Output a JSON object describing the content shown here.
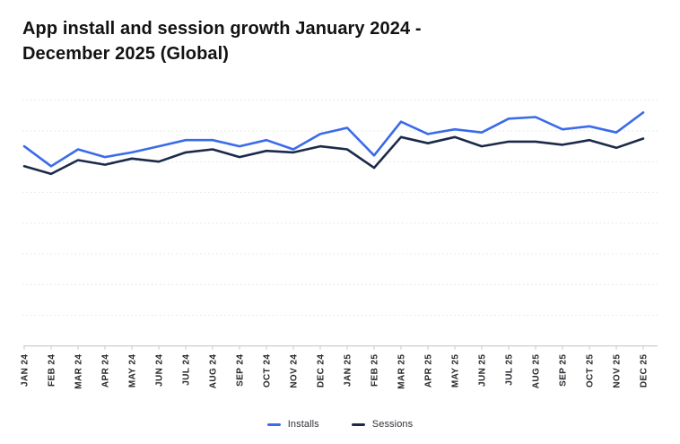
{
  "page": {
    "background": "#ffffff"
  },
  "header": {
    "title": "App install and session growth January 2024 - December 2025 (Global)",
    "title_lines": [
      "App install and session growth January 2024 -",
      "December 2025 (Global)"
    ]
  },
  "legend": {
    "items": [
      "Installs",
      "Sessions"
    ]
  },
  "colors": {
    "installs_line": "#3A6BE8",
    "sessions_line": "#1C2A4A",
    "gridline": "#e4e4e4",
    "axis": "#c8c8c8",
    "axis_label": "#27292d",
    "title_text": "#121212"
  },
  "chart_data": {
    "type": "line",
    "title": "App install and session growth January 2024 - December 2025 (Global)",
    "x_categories": [
      "JAN 24",
      "FEB 24",
      "MAR 24",
      "APR 24",
      "MAY 24",
      "JUN 24",
      "JUL 24",
      "AUG 24",
      "SEP 24",
      "OCT 24",
      "NOV 24",
      "DEC 24",
      "JAN 25",
      "FEB 25",
      "MAR 25",
      "APR 25",
      "MAY 25",
      "JUN 25",
      "JUL 25",
      "AUG 25",
      "SEP 25",
      "OCT 25",
      "NOV 25",
      "DEC 25"
    ],
    "series": [
      {
        "name": "Installs",
        "color": "#3A6BE8",
        "values": [
          65,
          58.5,
          64,
          61.5,
          63,
          65,
          67,
          67,
          65,
          67,
          64,
          69,
          71,
          62,
          73,
          69,
          70.5,
          69.5,
          74,
          74.5,
          70.5,
          71.5,
          69.5,
          76
        ]
      },
      {
        "name": "Sessions",
        "color": "#1C2A4A",
        "values": [
          58.5,
          56,
          60.5,
          59,
          61,
          60,
          63,
          64,
          61.5,
          63.5,
          63,
          65,
          64,
          58,
          68,
          66,
          68,
          65,
          66.5,
          66.5,
          65.5,
          67,
          64.5,
          67.5
        ]
      }
    ],
    "xlabel": "",
    "ylabel": "",
    "ylim": [
      0,
      80
    ],
    "gridline_step": 10,
    "y_axis_labels_visible": false,
    "grid": "horizontal dotted lines, no vertical grid",
    "x_tick_label_rotation": -90,
    "legend_position": "bottom-center",
    "units": "relative growth index (y axis unlabeled in source)"
  }
}
